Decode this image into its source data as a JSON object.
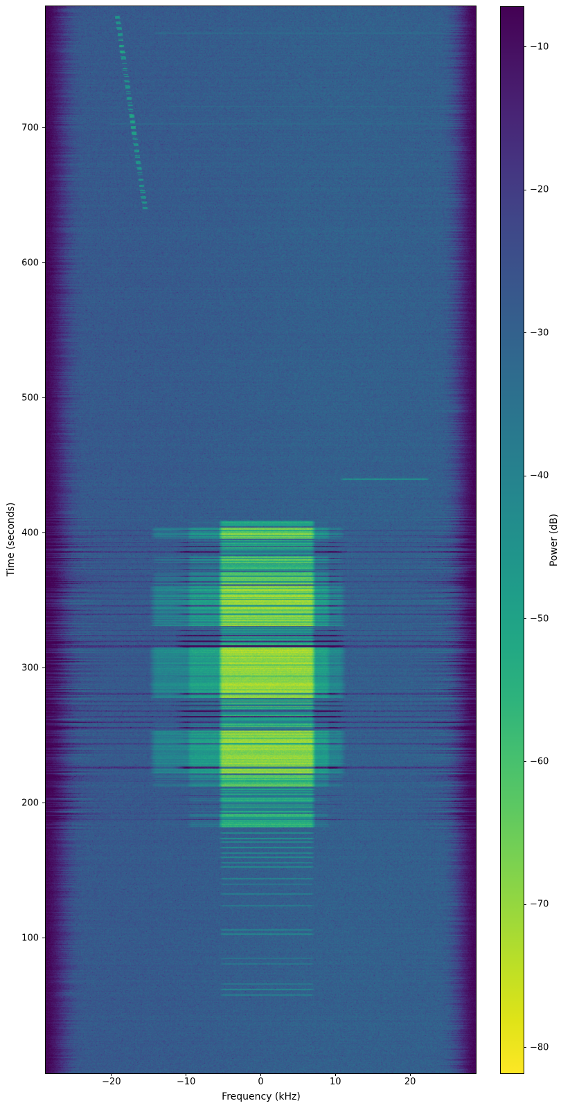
{
  "figure": {
    "background": "#ffffff"
  },
  "chart_data": {
    "type": "heatmap",
    "title": "",
    "xlabel": "Frequency (kHz)",
    "ylabel": "Time (seconds)",
    "colorbar_label": "Power (dB)",
    "colormap": "viridis",
    "x_range_khz": [
      -28.8,
      28.8
    ],
    "y_range_seconds": [
      0,
      790
    ],
    "power_range_db": [
      -81.8,
      -7.2
    ],
    "x_ticks": [
      -20,
      -10,
      0,
      10,
      20
    ],
    "y_ticks": [
      100,
      200,
      300,
      400,
      500,
      600,
      700
    ],
    "colorbar_ticks": [
      -10,
      -20,
      -30,
      -40,
      -50,
      -60,
      -70,
      -80
    ],
    "noise_floor_db": -60.5,
    "edge_floor_db": -81,
    "edge_rolloff_khz": 4.8,
    "signal_core_khz": [
      -5.0,
      6.7
    ],
    "signal_shoulder_khz": [
      -9.2,
      8.7
    ],
    "signal_wide_khz": [
      -13.8,
      10.4
    ],
    "shoulder_atten_db": 21,
    "wide_atten_db": 29,
    "edge_streak_t_range": [
      180,
      412
    ],
    "burst_blocks": [
      {
        "t0": 182,
        "t1": 192,
        "db": -36,
        "var": 8
      },
      {
        "t0": 193,
        "t1": 211,
        "db": -44,
        "var": 11
      },
      {
        "t0": 212,
        "t1": 221,
        "db": -28,
        "var": 7
      },
      {
        "t0": 222,
        "t1": 254,
        "db": -20,
        "var": 4
      },
      {
        "t0": 255,
        "t1": 277,
        "db": -38,
        "var": 13
      },
      {
        "t0": 278,
        "t1": 316,
        "db": -19,
        "var": 4
      },
      {
        "t0": 317,
        "t1": 330,
        "db": -41,
        "var": 12
      },
      {
        "t0": 331,
        "t1": 361,
        "db": -22,
        "var": 6
      },
      {
        "t0": 362,
        "t1": 371,
        "db": -26,
        "var": 7
      },
      {
        "t0": 372,
        "t1": 383,
        "db": -31,
        "var": 9
      },
      {
        "t0": 384,
        "t1": 395,
        "db": -40,
        "var": 12
      },
      {
        "t0": 396,
        "t1": 404,
        "db": -24,
        "var": 5
      },
      {
        "t0": 405,
        "t1": 409,
        "db": -35,
        "var": 8
      }
    ],
    "narrow_lines": [
      {
        "t": 58,
        "db": -51
      },
      {
        "t": 62,
        "db": -48
      },
      {
        "t": 66,
        "db": -52
      },
      {
        "t": 81,
        "db": -52
      },
      {
        "t": 85,
        "db": -53
      },
      {
        "t": 103,
        "db": -47
      },
      {
        "t": 106,
        "db": -50
      },
      {
        "t": 124,
        "db": -51
      },
      {
        "t": 133,
        "db": -50
      },
      {
        "t": 140,
        "db": -52
      },
      {
        "t": 144,
        "db": -49
      },
      {
        "t": 153,
        "db": -46
      },
      {
        "t": 156,
        "db": -49
      },
      {
        "t": 160,
        "db": -46
      },
      {
        "t": 163,
        "db": -48
      },
      {
        "t": 167,
        "db": -45
      },
      {
        "t": 171,
        "db": -47
      },
      {
        "t": 174,
        "db": -44
      },
      {
        "t": 178,
        "db": -45
      }
    ],
    "dark_rows": [
      {
        "t": 188,
        "w": 0.7,
        "depth": 12
      },
      {
        "t": 199,
        "w": 0.6,
        "depth": 10
      },
      {
        "t": 206,
        "w": 0.6,
        "depth": 10
      },
      {
        "t": 216,
        "w": 0.7,
        "depth": 14
      },
      {
        "t": 226.5,
        "w": 1.5,
        "depth": 34
      },
      {
        "t": 237,
        "w": 0.6,
        "depth": 10
      },
      {
        "t": 244,
        "w": 0.8,
        "depth": 18
      },
      {
        "t": 248,
        "w": 0.6,
        "depth": 12
      },
      {
        "t": 252,
        "w": 0.8,
        "depth": 20
      },
      {
        "t": 256,
        "w": 1.0,
        "depth": 26
      },
      {
        "t": 260,
        "w": 0.8,
        "depth": 24
      },
      {
        "t": 264,
        "w": 0.8,
        "depth": 26
      },
      {
        "t": 268,
        "w": 0.8,
        "depth": 24
      },
      {
        "t": 272,
        "w": 0.8,
        "depth": 26
      },
      {
        "t": 275,
        "w": 0.8,
        "depth": 22
      },
      {
        "t": 281,
        "w": 1.0,
        "depth": 30
      },
      {
        "t": 294,
        "w": 0.6,
        "depth": 16
      },
      {
        "t": 302,
        "w": 0.6,
        "depth": 14
      },
      {
        "t": 309,
        "w": 0.6,
        "depth": 12
      },
      {
        "t": 316,
        "w": 1.2,
        "depth": 30
      },
      {
        "t": 320,
        "w": 0.8,
        "depth": 26
      },
      {
        "t": 324,
        "w": 0.8,
        "depth": 22
      },
      {
        "t": 328,
        "w": 0.6,
        "depth": 20
      },
      {
        "t": 334,
        "w": 0.8,
        "depth": 18
      },
      {
        "t": 340,
        "w": 0.8,
        "depth": 22
      },
      {
        "t": 346,
        "w": 1.0,
        "depth": 26
      },
      {
        "t": 351,
        "w": 0.7,
        "depth": 18
      },
      {
        "t": 355,
        "w": 0.8,
        "depth": 22
      },
      {
        "t": 359,
        "w": 0.7,
        "depth": 18
      },
      {
        "t": 364,
        "w": 0.7,
        "depth": 18
      },
      {
        "t": 368,
        "w": 0.7,
        "depth": 16
      },
      {
        "t": 373,
        "w": 0.7,
        "depth": 18
      },
      {
        "t": 377,
        "w": 0.7,
        "depth": 16
      },
      {
        "t": 381,
        "w": 0.7,
        "depth": 16
      },
      {
        "t": 386,
        "w": 0.8,
        "depth": 24
      },
      {
        "t": 390,
        "w": 0.7,
        "depth": 20
      },
      {
        "t": 393,
        "w": 0.7,
        "depth": 18
      },
      {
        "t": 398,
        "w": 0.6,
        "depth": 14
      },
      {
        "t": 402,
        "w": 0.7,
        "depth": 16
      }
    ],
    "doppler_trace": {
      "t_start": 783,
      "f_start": -19.2,
      "t_end": 640,
      "f_end": -15.5,
      "db": -44,
      "bright_t": [
        [
          753,
          766
        ],
        [
          692,
          710
        ]
      ]
    },
    "carrier_line": {
      "t": 440,
      "f0": 11.2,
      "f1": 22.0,
      "db": -44
    },
    "faint_lines": [
      {
        "t": 770,
        "f0": -14,
        "f1": 25,
        "db": -56.5
      },
      {
        "t": 716,
        "f0": -12,
        "f1": 27,
        "db": -56
      },
      {
        "t": 703,
        "f0": -20,
        "f1": 27,
        "db": -57
      }
    ],
    "viridis_stops": [
      "#440154",
      "#471365",
      "#482475",
      "#453581",
      "#404688",
      "#3a538b",
      "#34608d",
      "#2e6d8e",
      "#29798e",
      "#25858e",
      "#21918c",
      "#1f9d89",
      "#22a884",
      "#2eb37c",
      "#44bf70",
      "#5cc862",
      "#7ad151",
      "#9ad83c",
      "#bddf26",
      "#dfe318",
      "#fde725"
    ]
  }
}
